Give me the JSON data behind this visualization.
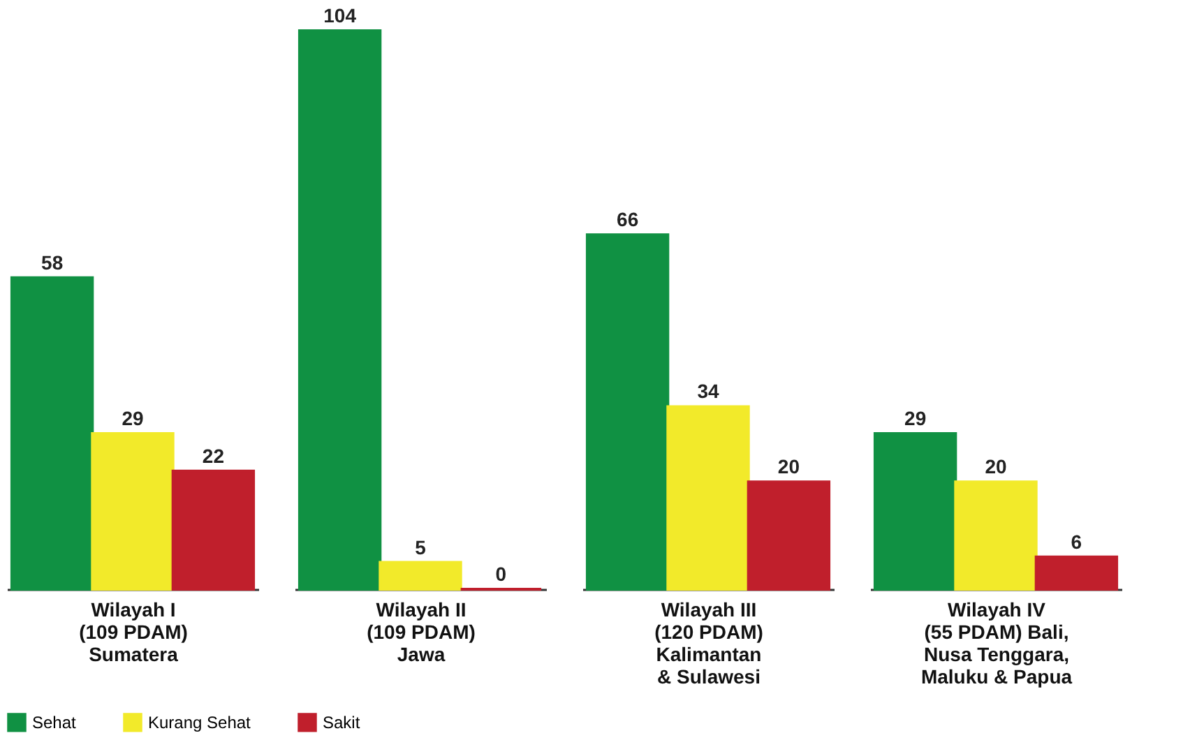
{
  "chart_data": {
    "type": "bar",
    "categories": [
      "Wilayah I\n(109 PDAM)\nSumatera",
      "Wilayah II\n(109 PDAM)\nJawa",
      "Wilayah III\n(120 PDAM)\nKalimantan\n& Sulawesi",
      "Wilayah IV\n(55 PDAM) Bali,\nNusa Tenggara,\nMaluku & Papua"
    ],
    "series": [
      {
        "name": "Sehat",
        "color": "#109143",
        "values": [
          58,
          104,
          66,
          29
        ]
      },
      {
        "name": "Kurang Sehat",
        "color": "#f2ea2a",
        "values": [
          29,
          5,
          34,
          20
        ]
      },
      {
        "name": "Sakit",
        "color": "#c01f2c",
        "values": [
          22,
          0,
          20,
          6
        ]
      }
    ],
    "data_labels": true,
    "tick_labels": "x",
    "grid": false,
    "legend": "bottom left"
  }
}
